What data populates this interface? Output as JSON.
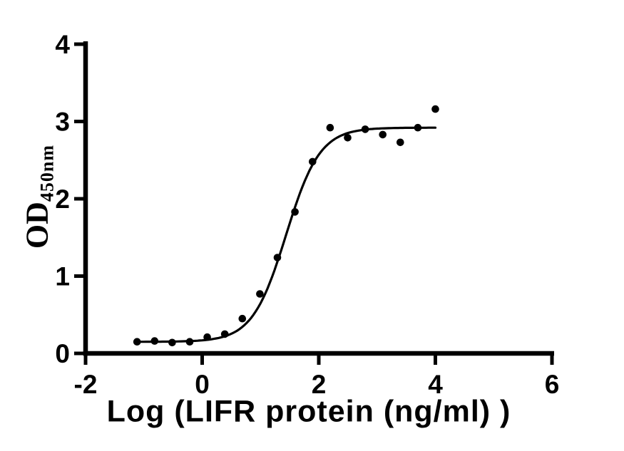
{
  "figure": {
    "background": "#ffffff",
    "ink_color": "#000000"
  },
  "chart_data": {
    "type": "scatter",
    "title": "",
    "xlabel": "Log (LIFR protein (ng/ml) )",
    "ylabel_base": "OD",
    "ylabel_sub": "450nm",
    "xlim": [
      -2,
      6
    ],
    "ylim": [
      0,
      4
    ],
    "xticks": [
      -2,
      0,
      2,
      4,
      6
    ],
    "yticks": [
      0,
      1,
      2,
      3,
      4
    ],
    "grid": false,
    "legend": "none",
    "series": [
      {
        "name": "LIFR protein ELISA data points",
        "type": "scatter",
        "marker": "filled-circle",
        "color": "#000000",
        "x": [
          -1.117,
          -0.816,
          -0.515,
          -0.214,
          0.087,
          0.388,
          0.689,
          0.99,
          1.291,
          1.592,
          1.893,
          2.194,
          2.495,
          2.796,
          3.097,
          3.398,
          3.699,
          4.0
        ],
        "y": [
          0.15,
          0.16,
          0.14,
          0.15,
          0.21,
          0.25,
          0.45,
          0.77,
          1.24,
          1.83,
          2.48,
          2.92,
          2.79,
          2.9,
          2.83,
          2.73,
          2.92,
          3.16
        ]
      },
      {
        "name": "4PL sigmoidal fit curve",
        "type": "line",
        "color": "#000000",
        "fit_4pl": {
          "bottom": 0.15,
          "top": 2.92,
          "logEC50": 1.44,
          "hill": 1.5,
          "x_start": -1.12,
          "x_end": 4.03
        }
      }
    ]
  }
}
